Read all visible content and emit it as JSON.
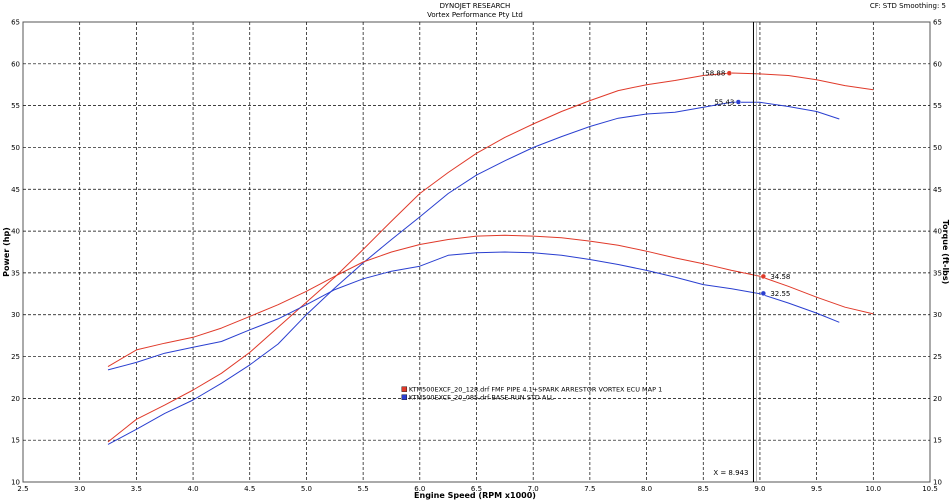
{
  "header": {
    "title": "DYNOJET RESEARCH",
    "subtitle": "Vortex Performance Pty Ltd",
    "right": "CF: STD   Smoothing: 5"
  },
  "chart_data": {
    "type": "line",
    "title": "DYNOJET RESEARCH",
    "subtitle": "Vortex Performance Pty Ltd",
    "xlabel": "Engine Speed (RPM x1000)",
    "ylabel_left": "Power (hp)",
    "ylabel_right": "Torque (ft-lbs)",
    "xlim": [
      2.5,
      10.5
    ],
    "ylim": [
      10,
      65
    ],
    "xticks": [
      "2.5",
      "3.0",
      "3.5",
      "4.0",
      "4.5",
      "5.0",
      "5.5",
      "6.0",
      "6.5",
      "7.0",
      "7.5",
      "8.0",
      "8.5",
      "9.0",
      "9.5",
      "10.0",
      "10.5"
    ],
    "yticks": [
      "10",
      "15",
      "20",
      "25",
      "30",
      "35",
      "40",
      "45",
      "50",
      "55",
      "60",
      "65"
    ],
    "grid": true,
    "cursor": {
      "x": 8.943,
      "label": "X = 8.943"
    },
    "legend": [
      {
        "name": "KTM500EXCF_20_128.drf FMF PIPE 4.1+SPARK ARRESTOR  VORTEX ECU MAP 1",
        "color": "#e03a2a"
      },
      {
        "name": "KTM500EXCF_20_085.drf BASE RUN STD ALL",
        "color": "#2a3fd0"
      }
    ],
    "markers": [
      {
        "series": "power_red",
        "x": 8.73,
        "y": 58.88,
        "label": "58.88"
      },
      {
        "series": "power_blue",
        "x": 8.81,
        "y": 55.43,
        "label": "55.43"
      },
      {
        "series": "torque_red",
        "x": 9.03,
        "y": 34.58,
        "label": "34.58"
      },
      {
        "series": "torque_blue",
        "x": 9.03,
        "y": 32.55,
        "label": "32.55"
      }
    ],
    "series": [
      {
        "key": "power_red",
        "color": "#e03a2a",
        "x": [
          3.25,
          3.5,
          3.75,
          4.0,
          4.25,
          4.5,
          4.75,
          5.0,
          5.25,
          5.5,
          5.75,
          6.0,
          6.25,
          6.5,
          6.75,
          7.0,
          7.25,
          7.5,
          7.75,
          8.0,
          8.25,
          8.5,
          8.75,
          9.0,
          9.25,
          9.5,
          9.75,
          10.0
        ],
        "y": [
          14.8,
          17.5,
          19.2,
          21.0,
          23.0,
          25.5,
          28.5,
          31.5,
          34.5,
          37.8,
          41.2,
          44.5,
          47.0,
          49.3,
          51.2,
          52.8,
          54.3,
          55.6,
          56.8,
          57.5,
          58.0,
          58.6,
          58.9,
          58.8,
          58.6,
          58.1,
          57.4,
          56.9
        ]
      },
      {
        "key": "power_blue",
        "color": "#2a3fd0",
        "x": [
          3.25,
          3.5,
          3.75,
          4.0,
          4.25,
          4.5,
          4.75,
          5.0,
          5.25,
          5.5,
          5.75,
          6.0,
          6.25,
          6.5,
          6.75,
          7.0,
          7.25,
          7.5,
          7.75,
          8.0,
          8.25,
          8.5,
          8.75,
          9.0,
          9.25,
          9.5,
          9.7
        ],
        "y": [
          14.5,
          16.3,
          18.2,
          19.8,
          21.8,
          24.0,
          26.5,
          30.0,
          33.2,
          36.2,
          39.0,
          41.7,
          44.5,
          46.7,
          48.4,
          50.0,
          51.3,
          52.5,
          53.5,
          54.0,
          54.2,
          54.8,
          55.4,
          55.4,
          54.9,
          54.3,
          53.4
        ]
      },
      {
        "key": "torque_red",
        "color": "#e03a2a",
        "x": [
          3.25,
          3.5,
          3.75,
          4.0,
          4.25,
          4.5,
          4.75,
          5.0,
          5.25,
          5.5,
          5.75,
          6.0,
          6.25,
          6.5,
          6.75,
          7.0,
          7.25,
          7.5,
          7.75,
          8.0,
          8.25,
          8.5,
          8.75,
          9.0,
          9.25,
          9.5,
          9.75,
          10.0
        ],
        "y": [
          23.8,
          25.8,
          26.6,
          27.3,
          28.4,
          29.8,
          31.2,
          32.8,
          34.6,
          36.3,
          37.5,
          38.4,
          39.0,
          39.4,
          39.5,
          39.4,
          39.2,
          38.8,
          38.3,
          37.6,
          36.8,
          36.1,
          35.3,
          34.6,
          33.4,
          32.1,
          30.9,
          30.1
        ]
      },
      {
        "key": "torque_blue",
        "color": "#2a3fd0",
        "x": [
          3.25,
          3.5,
          3.75,
          4.0,
          4.25,
          4.5,
          4.75,
          5.0,
          5.25,
          5.5,
          5.75,
          6.0,
          6.25,
          6.5,
          6.75,
          7.0,
          7.25,
          7.5,
          7.75,
          8.0,
          8.25,
          8.5,
          8.75,
          9.0,
          9.25,
          9.5,
          9.7
        ],
        "y": [
          23.4,
          24.3,
          25.4,
          26.1,
          26.8,
          28.2,
          29.5,
          31.2,
          33.0,
          34.3,
          35.2,
          35.8,
          37.1,
          37.4,
          37.5,
          37.4,
          37.1,
          36.6,
          36.0,
          35.3,
          34.5,
          33.6,
          33.1,
          32.5,
          31.4,
          30.2,
          29.1
        ]
      }
    ]
  }
}
